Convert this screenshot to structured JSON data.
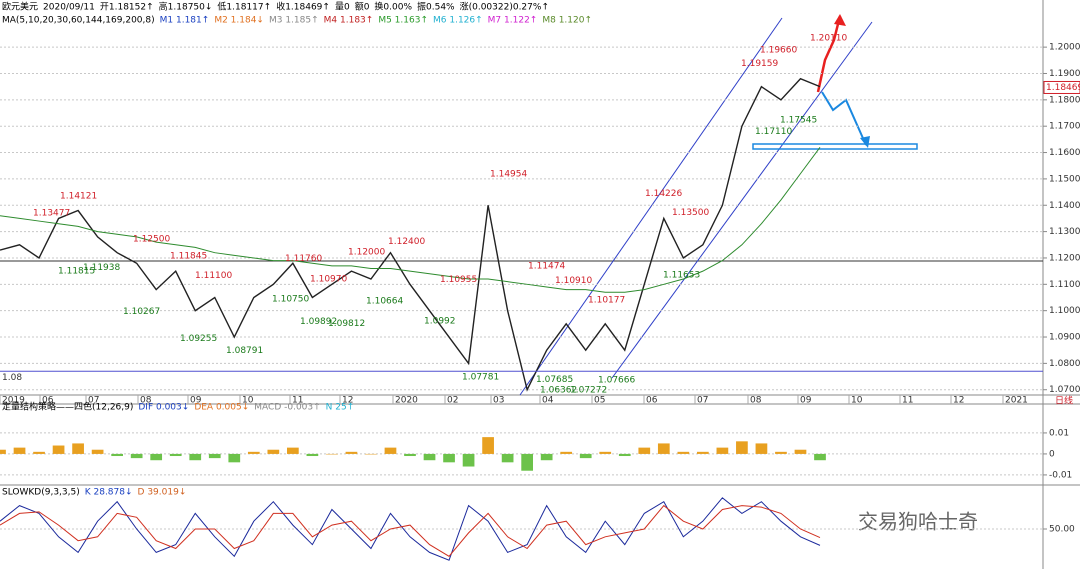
{
  "header": {
    "quote": [
      "欧元美元",
      "2020/09/11",
      "开1.18152↑",
      "高1.18750↓",
      "低1.18117↑",
      "收1.18469↑",
      "量0",
      "额0",
      "换0.00%",
      "振0.54%",
      "涨(0.00322)0.27%↑"
    ],
    "ma": [
      "MA(5,10,20,30,60,144,169,200,8)",
      "M1 1.181↑",
      "M2 1.184↓",
      "M3 1.185↑",
      "M4 1.183↑",
      "M5 1.163↑",
      "M6 1.126↑",
      "M7 1.122↑",
      "M8 1.120↑"
    ]
  },
  "x_labels": [
    "2019",
    "06",
    "07",
    "08",
    "09",
    "10",
    "11",
    "12",
    "2020",
    "02",
    "03",
    "04",
    "05",
    "06",
    "07",
    "08",
    "09",
    "10",
    "11",
    "12",
    "2021"
  ],
  "period": "日线",
  "watermark": "交易狗哈士奇",
  "chart_data": [
    {
      "type": "line",
      "series": [
        {
          "color": "#222222",
          "values": [
            1.123,
            1.125,
            1.12,
            1.135,
            1.138,
            1.128,
            1.122,
            1.118,
            1.108,
            1.115,
            1.1,
            1.105,
            1.09,
            1.105,
            1.11,
            1.118,
            1.105,
            1.11,
            1.115,
            1.112,
            1.122,
            1.11,
            1.1,
            1.09,
            1.08,
            1.14,
            1.1,
            1.07,
            1.085,
            1.095,
            1.085,
            1.095,
            1.085,
            1.11,
            1.135,
            1.12,
            1.125,
            1.14,
            1.17,
            1.185,
            1.18,
            1.188,
            1.185
          ]
        },
        {
          "color": "#2e8b2e",
          "values": [
            1.136,
            1.135,
            1.134,
            1.133,
            1.132,
            1.13,
            1.129,
            1.128,
            1.126,
            1.125,
            1.124,
            1.122,
            1.121,
            1.12,
            1.119,
            1.119,
            1.118,
            1.117,
            1.117,
            1.116,
            1.116,
            1.115,
            1.114,
            1.113,
            1.112,
            1.112,
            1.111,
            1.11,
            1.109,
            1.108,
            1.108,
            1.107,
            1.107,
            1.108,
            1.11,
            1.112,
            1.115,
            1.119,
            1.125,
            1.133,
            1.142,
            1.152,
            1.162
          ]
        }
      ],
      "ylim": [
        1.068,
        1.2065
      ],
      "yticks": [
        {
          "value": 1.07,
          "label": "1.07000"
        },
        {
          "value": 1.08,
          "label": "1.08000"
        },
        {
          "value": 1.09,
          "label": "1.09000"
        },
        {
          "value": 1.1,
          "label": "1.10000"
        },
        {
          "value": 1.11,
          "label": "1.11000"
        },
        {
          "value": 1.12,
          "label": "1.12000"
        },
        {
          "value": 1.13,
          "label": "1.13000"
        },
        {
          "value": 1.14,
          "label": "1.14000"
        },
        {
          "value": 1.15,
          "label": "1.15000"
        },
        {
          "value": 1.16,
          "label": "1.16000"
        },
        {
          "value": 1.17,
          "label": "1.17000"
        },
        {
          "value": 1.18,
          "label": "1.18000"
        },
        {
          "value": 1.19,
          "label": "1.19000"
        },
        {
          "value": 1.2,
          "label": "1.20000"
        }
      ],
      "grid": true,
      "last_price": 1.18469,
      "hline": {
        "value": 1.077,
        "label": "1.08"
      },
      "high_color": "#d0202a",
      "low_color": "#1a7a1a",
      "high_labels": [
        1.14121,
        1.13477,
        {
          "value": 1.125,
          "label": "1.12500"
        },
        1.11845,
        {
          "value": 1.111,
          "label": "1.11100"
        },
        {
          "value": 1.1176,
          "label": "1.11760"
        },
        {
          "value": 1.1097,
          "label": "1.10970"
        },
        {
          "value": 1.12,
          "label": "1.12000"
        },
        {
          "value": 1.124,
          "label": "1.12400"
        },
        1.10955,
        1.14954,
        1.11474,
        {
          "value": 1.1091,
          "label": "1.10910"
        },
        1.10177,
        1.14226,
        {
          "value": 1.135,
          "label": "1.13500"
        },
        1.19159,
        {
          "value": 1.1966,
          "label": "1.19660"
        },
        {
          "value": 1.2011,
          "label": "1.20110"
        }
      ],
      "low_labels": [
        1.11815,
        1.11938,
        1.10267,
        1.09255,
        1.08791,
        {
          "value": 1.1075,
          "label": "1.10750"
        },
        1.09892,
        1.09812,
        1.10664,
        1.0992,
        1.07781,
        1.07685,
        1.06362,
        1.07272,
        1.07666,
        1.11653,
        1.17545,
        {
          "value": 1.1711,
          "label": "1.17110"
        }
      ]
    },
    {
      "type": "bar",
      "header": [
        "定量结构策略——四色(12,26,9)",
        "DIF 0.003↓",
        "DEA 0.005↓",
        "MACD -0.003↑",
        "N 25↑"
      ],
      "values": [
        0.002,
        0.003,
        0.001,
        0.004,
        0.005,
        0.002,
        -0.001,
        -0.002,
        -0.003,
        -0.001,
        -0.003,
        -0.002,
        -0.004,
        0.001,
        0.002,
        0.003,
        -0.001,
        0,
        0.001,
        0,
        0.003,
        -0.001,
        -0.003,
        -0.004,
        -0.006,
        0.008,
        -0.004,
        -0.008,
        -0.003,
        0.001,
        -0.002,
        0.001,
        -0.001,
        0.003,
        0.005,
        0.001,
        0.001,
        0.003,
        0.006,
        0.005,
        0.001,
        0.002,
        -0.003
      ],
      "up_color": "#e8a020",
      "down_color": "#6cc24a",
      "ylim": [
        -0.0148,
        0.0233
      ],
      "yticks": [
        0.01,
        0,
        -0.01
      ]
    },
    {
      "type": "line",
      "header": [
        "SLOWKD(9,3,3,5)",
        "K 28.878↓",
        "D 39.019↓"
      ],
      "series": [
        {
          "color": "#1c2a9c",
          "values": [
            60,
            80,
            70,
            40,
            20,
            60,
            85,
            50,
            20,
            30,
            70,
            40,
            15,
            60,
            85,
            55,
            30,
            75,
            50,
            25,
            70,
            40,
            20,
            10,
            80,
            60,
            20,
            30,
            80,
            40,
            20,
            60,
            30,
            70,
            85,
            40,
            60,
            90,
            70,
            85,
            60,
            40,
            29
          ]
        },
        {
          "color": "#d03020",
          "values": [
            55,
            70,
            72,
            55,
            35,
            40,
            70,
            65,
            35,
            25,
            50,
            50,
            25,
            35,
            70,
            70,
            40,
            55,
            60,
            35,
            50,
            55,
            30,
            15,
            45,
            70,
            40,
            25,
            55,
            60,
            30,
            40,
            45,
            50,
            80,
            60,
            50,
            75,
            80,
            78,
            70,
            50,
            39
          ]
        }
      ],
      "ylim": [
        0,
        100
      ],
      "yticks": [
        {
          "value": 50,
          "label": "50.00"
        }
      ]
    }
  ]
}
